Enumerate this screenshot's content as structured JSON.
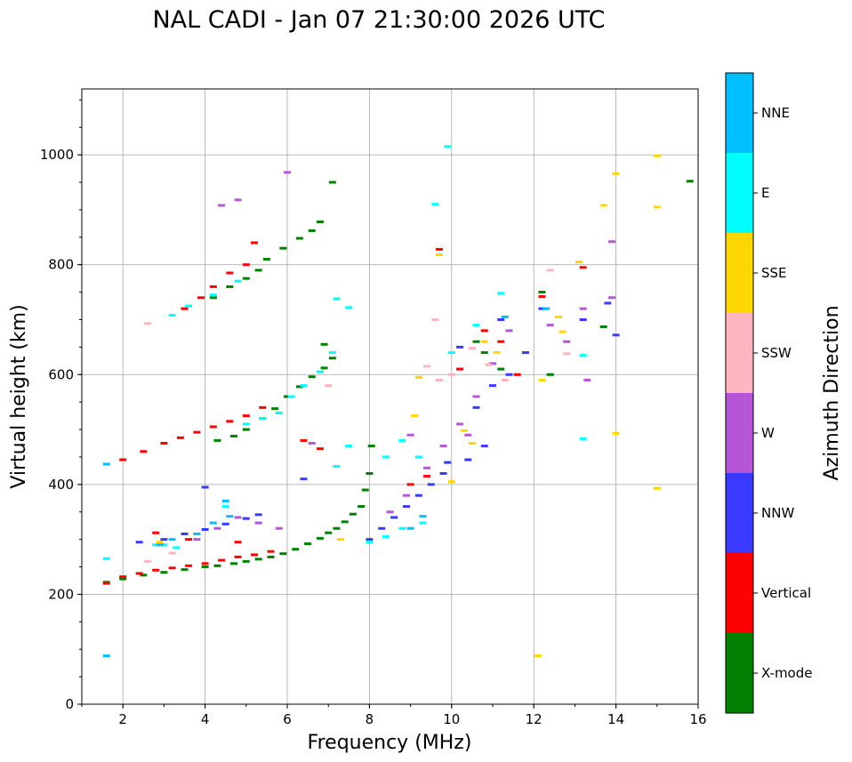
{
  "chart_data": {
    "type": "scatter",
    "title": "NAL CADI - Jan 07 21:30:00 2026 UTC",
    "xlabel": "Frequency (MHz)",
    "ylabel": "Virtual height (km)",
    "xlim": [
      1,
      16
    ],
    "ylim": [
      0,
      1120
    ],
    "x_ticks": [
      2,
      4,
      6,
      8,
      10,
      12,
      14,
      16
    ],
    "y_ticks": [
      0,
      200,
      400,
      600,
      800,
      1000
    ],
    "grid": true,
    "colorbar": {
      "title": "Azimuth Direction",
      "categories": [
        "X-mode",
        "Vertical",
        "NNW",
        "W",
        "SSW",
        "SSE",
        "E",
        "NNE"
      ],
      "colors": [
        "#008000",
        "#ff0000",
        "#3a3aff",
        "#b556d6",
        "#ffb6c1",
        "#ffd700",
        "#00ffff",
        "#00bfff"
      ]
    },
    "series": [
      {
        "name": "X-mode",
        "points": [
          [
            1.6,
            222
          ],
          [
            2.0,
            228
          ],
          [
            2.5,
            235
          ],
          [
            3.0,
            240
          ],
          [
            3.5,
            245
          ],
          [
            4.0,
            250
          ],
          [
            4.3,
            252
          ],
          [
            4.7,
            256
          ],
          [
            5.0,
            260
          ],
          [
            5.3,
            264
          ],
          [
            5.6,
            268
          ],
          [
            5.9,
            274
          ],
          [
            6.2,
            282
          ],
          [
            6.5,
            292
          ],
          [
            6.8,
            302
          ],
          [
            7.0,
            312
          ],
          [
            7.2,
            320
          ],
          [
            7.4,
            332
          ],
          [
            7.6,
            346
          ],
          [
            7.8,
            360
          ],
          [
            7.9,
            390
          ],
          [
            8.0,
            420
          ],
          [
            8.05,
            470
          ],
          [
            4.3,
            480
          ],
          [
            4.7,
            488
          ],
          [
            5.0,
            500
          ],
          [
            5.4,
            520
          ],
          [
            5.7,
            538
          ],
          [
            6.0,
            560
          ],
          [
            6.3,
            578
          ],
          [
            6.6,
            596
          ],
          [
            6.9,
            612
          ],
          [
            7.1,
            630
          ],
          [
            4.2,
            740
          ],
          [
            4.6,
            760
          ],
          [
            5.0,
            775
          ],
          [
            5.3,
            790
          ],
          [
            5.5,
            810
          ],
          [
            5.9,
            830
          ],
          [
            6.3,
            848
          ],
          [
            6.6,
            862
          ],
          [
            6.8,
            878
          ],
          [
            7.1,
            950
          ],
          [
            15.8,
            952
          ],
          [
            10.6,
            660
          ],
          [
            10.8,
            640
          ],
          [
            11.2,
            610
          ],
          [
            12.2,
            750
          ],
          [
            12.4,
            600
          ],
          [
            13.7,
            687
          ],
          [
            6.9,
            655
          ]
        ]
      },
      {
        "name": "Vertical",
        "points": [
          [
            1.6,
            220
          ],
          [
            2.0,
            232
          ],
          [
            2.4,
            238
          ],
          [
            2.8,
            244
          ],
          [
            3.2,
            248
          ],
          [
            3.6,
            252
          ],
          [
            4.0,
            256
          ],
          [
            4.4,
            262
          ],
          [
            4.8,
            268
          ],
          [
            5.2,
            272
          ],
          [
            5.6,
            278
          ],
          [
            2.0,
            445
          ],
          [
            2.5,
            460
          ],
          [
            3.0,
            475
          ],
          [
            3.4,
            485
          ],
          [
            3.8,
            495
          ],
          [
            4.2,
            505
          ],
          [
            4.6,
            515
          ],
          [
            5.0,
            525
          ],
          [
            5.4,
            540
          ],
          [
            3.5,
            720
          ],
          [
            3.9,
            740
          ],
          [
            4.2,
            760
          ],
          [
            4.6,
            785
          ],
          [
            5.0,
            800
          ],
          [
            5.2,
            840
          ],
          [
            2.8,
            312
          ],
          [
            3.6,
            300
          ],
          [
            4.8,
            295
          ],
          [
            6.8,
            465
          ],
          [
            6.4,
            480
          ],
          [
            9.0,
            400
          ],
          [
            9.4,
            415
          ],
          [
            10.2,
            610
          ],
          [
            10.8,
            680
          ],
          [
            11.2,
            660
          ],
          [
            11.6,
            600
          ],
          [
            12.2,
            742
          ],
          [
            13.2,
            795
          ],
          [
            9.7,
            828
          ]
        ]
      },
      {
        "name": "NNW",
        "points": [
          [
            2.4,
            295
          ],
          [
            3.0,
            300
          ],
          [
            3.5,
            310
          ],
          [
            4.0,
            318
          ],
          [
            4.5,
            328
          ],
          [
            5.0,
            338
          ],
          [
            5.3,
            345
          ],
          [
            8.0,
            300
          ],
          [
            8.3,
            320
          ],
          [
            8.6,
            340
          ],
          [
            8.9,
            360
          ],
          [
            9.2,
            380
          ],
          [
            9.5,
            400
          ],
          [
            9.8,
            420
          ],
          [
            10.4,
            445
          ],
          [
            10.8,
            470
          ],
          [
            11.0,
            580
          ],
          [
            11.4,
            600
          ],
          [
            11.8,
            640
          ],
          [
            12.2,
            720
          ],
          [
            13.2,
            700
          ],
          [
            13.8,
            730
          ],
          [
            14.0,
            672
          ],
          [
            6.4,
            410
          ],
          [
            4.0,
            395
          ],
          [
            9.9,
            440
          ],
          [
            10.6,
            540
          ],
          [
            11.2,
            700
          ],
          [
            10.2,
            650
          ]
        ]
      },
      {
        "name": "W",
        "points": [
          [
            3.8,
            300
          ],
          [
            4.3,
            320
          ],
          [
            4.8,
            340
          ],
          [
            5.3,
            330
          ],
          [
            5.8,
            320
          ],
          [
            8.5,
            350
          ],
          [
            8.9,
            380
          ],
          [
            9.4,
            430
          ],
          [
            9.8,
            470
          ],
          [
            10.2,
            510
          ],
          [
            10.6,
            560
          ],
          [
            11.0,
            620
          ],
          [
            11.4,
            680
          ],
          [
            12.4,
            690
          ],
          [
            12.8,
            660
          ],
          [
            13.2,
            720
          ],
          [
            13.9,
            842
          ],
          [
            13.9,
            740
          ],
          [
            13.3,
            590
          ],
          [
            6.0,
            968
          ],
          [
            6.6,
            475
          ],
          [
            4.8,
            918
          ],
          [
            4.4,
            908
          ],
          [
            9.0,
            490
          ],
          [
            10.4,
            490
          ]
        ]
      },
      {
        "name": "SSW",
        "points": [
          [
            2.6,
            260
          ],
          [
            3.2,
            275
          ],
          [
            9.4,
            615
          ],
          [
            9.6,
            700
          ],
          [
            9.7,
            590
          ],
          [
            10.0,
            600
          ],
          [
            10.5,
            648
          ],
          [
            10.9,
            618
          ],
          [
            11.3,
            590
          ],
          [
            12.4,
            790
          ],
          [
            12.8,
            638
          ],
          [
            7.0,
            580
          ],
          [
            2.6,
            693
          ]
        ]
      },
      {
        "name": "SSE",
        "points": [
          [
            9.1,
            525
          ],
          [
            9.2,
            595
          ],
          [
            10.0,
            405
          ],
          [
            10.3,
            498
          ],
          [
            10.5,
            475
          ],
          [
            10.8,
            660
          ],
          [
            11.1,
            640
          ],
          [
            12.2,
            590
          ],
          [
            12.6,
            705
          ],
          [
            12.7,
            678
          ],
          [
            13.1,
            805
          ],
          [
            13.7,
            908
          ],
          [
            14.0,
            966
          ],
          [
            15.0,
            998
          ],
          [
            15.0,
            905
          ],
          [
            15.0,
            393
          ],
          [
            12.1,
            88
          ],
          [
            14.0,
            493
          ],
          [
            9.7,
            818
          ],
          [
            7.3,
            300
          ],
          [
            2.9,
            295
          ]
        ]
      },
      {
        "name": "E",
        "points": [
          [
            1.6,
            265
          ],
          [
            2.8,
            290
          ],
          [
            3.0,
            290
          ],
          [
            3.3,
            285
          ],
          [
            4.5,
            360
          ],
          [
            5.0,
            510
          ],
          [
            5.4,
            520
          ],
          [
            5.8,
            530
          ],
          [
            6.1,
            560
          ],
          [
            6.4,
            580
          ],
          [
            6.8,
            605
          ],
          [
            7.1,
            640
          ],
          [
            3.2,
            708
          ],
          [
            3.6,
            725
          ],
          [
            4.2,
            745
          ],
          [
            4.8,
            770
          ],
          [
            7.2,
            738
          ],
          [
            7.5,
            722
          ],
          [
            8.0,
            295
          ],
          [
            8.4,
            305
          ],
          [
            8.8,
            320
          ],
          [
            9.3,
            330
          ],
          [
            9.6,
            910
          ],
          [
            9.9,
            1015
          ],
          [
            8.4,
            450
          ],
          [
            8.8,
            480
          ],
          [
            9.2,
            450
          ],
          [
            10.0,
            640
          ],
          [
            10.6,
            690
          ],
          [
            11.2,
            748
          ],
          [
            13.2,
            635
          ],
          [
            13.2,
            483
          ],
          [
            7.2,
            433
          ],
          [
            7.5,
            470
          ]
        ]
      },
      {
        "name": "NNE",
        "points": [
          [
            1.6,
            437
          ],
          [
            2.9,
            290
          ],
          [
            3.2,
            300
          ],
          [
            3.8,
            310
          ],
          [
            4.2,
            330
          ],
          [
            4.6,
            342
          ],
          [
            9.0,
            320
          ],
          [
            9.3,
            342
          ],
          [
            11.3,
            705
          ],
          [
            12.3,
            720
          ],
          [
            4.5,
            370
          ],
          [
            1.6,
            88
          ]
        ]
      }
    ]
  }
}
